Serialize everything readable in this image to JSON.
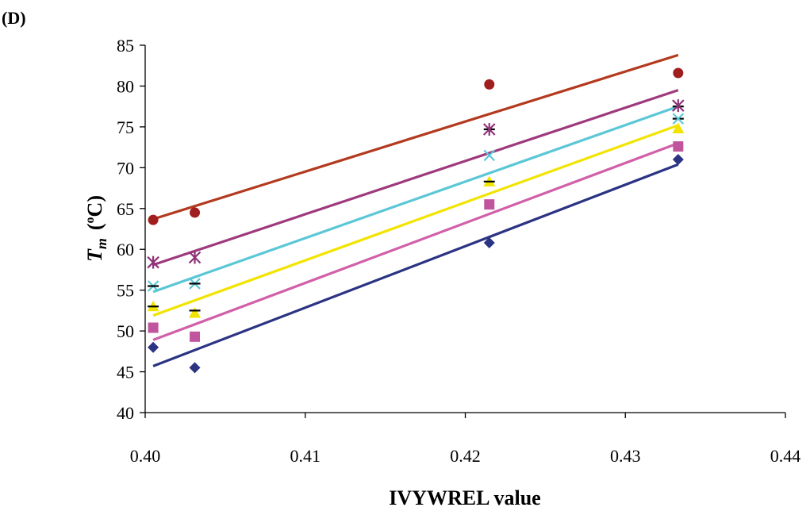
{
  "panel_label": "(D)",
  "chart_data": {
    "type": "scatter",
    "xlabel": "IVYWREL value",
    "ylabel": {
      "symbol": "T",
      "subscript": "m",
      "open_paren": "(",
      "superscript": "o",
      "unit": "C)"
    },
    "xlim": [
      0.4,
      0.44
    ],
    "ylim": [
      40,
      85
    ],
    "x_ticks": [
      "0.40",
      "0.41",
      "0.42",
      "0.43",
      "0.44"
    ],
    "y_ticks": [
      "40",
      "45",
      "50",
      "55",
      "60",
      "65",
      "70",
      "75",
      "80",
      "85"
    ],
    "grid": false,
    "legend": "none",
    "x": [
      0.4005,
      0.4031,
      0.4215,
      0.4333
    ],
    "series": [
      {
        "marker": "diamond",
        "color": "#2B3383",
        "values": [
          48.0,
          45.5,
          60.8,
          71.0
        ],
        "trend": [
          45.7,
          70.4
        ]
      },
      {
        "marker": "square",
        "color": "#C0559E",
        "values": [
          50.4,
          49.3,
          65.5,
          72.6
        ],
        "trend": [
          48.9,
          73.0
        ]
      },
      {
        "marker": "triangle",
        "color": "#F2E400",
        "values": [
          53.0,
          52.2,
          68.3,
          74.8
        ],
        "trend": [
          51.9,
          75.2
        ]
      },
      {
        "marker": "dash",
        "color": "#000000",
        "values": [
          53.0,
          52.5,
          68.3,
          76.0
        ],
        "trend": null
      },
      {
        "marker": "x",
        "color": "#5BC7D6",
        "values": [
          55.5,
          55.8,
          71.5,
          76.0
        ],
        "trend": [
          54.8,
          77.5
        ]
      },
      {
        "marker": "dash",
        "color": "#000000",
        "values": [
          55.5,
          55.8,
          74.7,
          77.5
        ],
        "trend": null
      },
      {
        "marker": "star",
        "color": "#8E3278",
        "values": [
          58.4,
          59.0,
          74.7,
          77.6
        ],
        "trend": [
          58.1,
          79.5
        ]
      },
      {
        "marker": "circle",
        "color": "#A01E1E",
        "values": [
          63.6,
          64.5,
          80.2,
          81.6
        ],
        "trend": [
          63.7,
          83.8
        ]
      }
    ],
    "trend_colors": {
      "diamond": "#2B3383",
      "square": "#D160A8",
      "triangle": "#F2E400",
      "x": "#5BC7D6",
      "star": "#9E3A7C",
      "circle": "#B33A1F"
    }
  }
}
